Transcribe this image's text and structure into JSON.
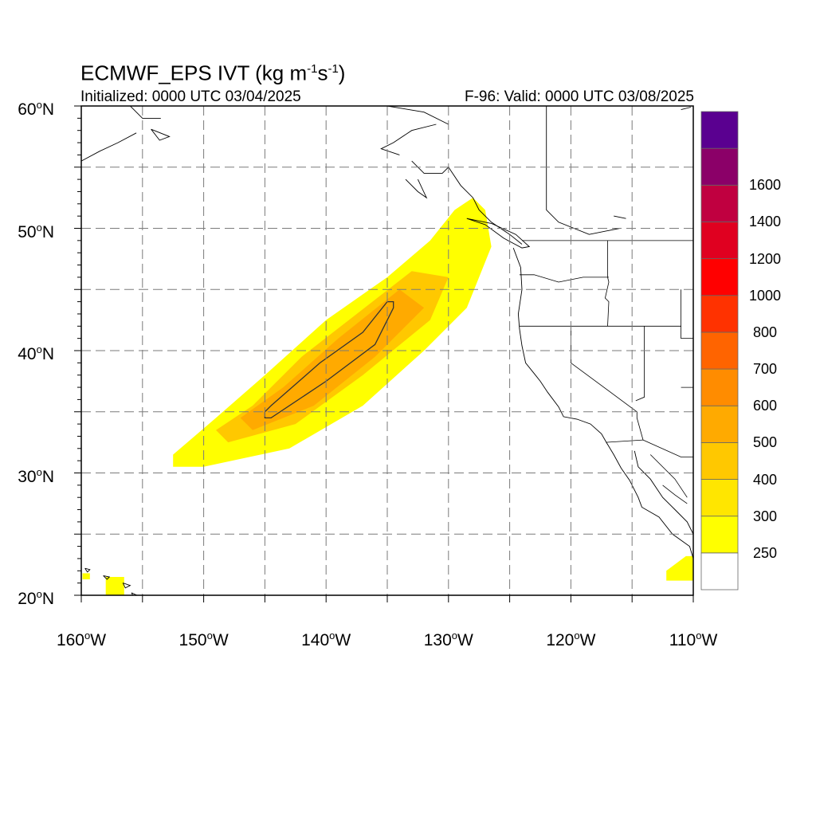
{
  "header": {
    "title_prefix": "ECMWF_EPS IVT (kg m",
    "title_sup1": "-1",
    "title_mid": "s",
    "title_sup2": "-1",
    "title_suffix": ")",
    "initialized": "Initialized: 0000 UTC 03/04/2025",
    "valid": "F-96: Valid: 0000 UTC 03/08/2025"
  },
  "axes": {
    "lat_labels": [
      {
        "value": 60,
        "text": "60",
        "hemi": "N"
      },
      {
        "value": 50,
        "text": "50",
        "hemi": "N"
      },
      {
        "value": 40,
        "text": "40",
        "hemi": "N"
      },
      {
        "value": 30,
        "text": "30",
        "hemi": "N"
      },
      {
        "value": 20,
        "text": "20",
        "hemi": "N"
      }
    ],
    "lon_labels": [
      {
        "value": -160,
        "text": "160",
        "hemi": "W"
      },
      {
        "value": -150,
        "text": "150",
        "hemi": "W"
      },
      {
        "value": -140,
        "text": "140",
        "hemi": "W"
      },
      {
        "value": -130,
        "text": "130",
        "hemi": "W"
      },
      {
        "value": -120,
        "text": "120",
        "hemi": "W"
      },
      {
        "value": -110,
        "text": "110",
        "hemi": "W"
      }
    ],
    "lat_range": [
      20,
      60
    ],
    "lon_range": [
      -160,
      -110
    ],
    "grid_lat": [
      25,
      30,
      35,
      40,
      45,
      50,
      55
    ],
    "grid_lon": [
      -155,
      -150,
      -145,
      -140,
      -135,
      -130,
      -125,
      -120,
      -115
    ],
    "grid_style": "dashed"
  },
  "colorbar": {
    "labels": [
      "1600",
      "1400",
      "1200",
      "1000",
      "800",
      "700",
      "600",
      "500",
      "400",
      "300",
      "250"
    ],
    "colors": [
      "#ffffff",
      "#ffff00",
      "#ffe600",
      "#ffc800",
      "#ffaa00",
      "#ff8c00",
      "#ff6400",
      "#ff3200",
      "#ff0000",
      "#e00020",
      "#c00040",
      "#8b0068",
      "#5a0090"
    ]
  },
  "ivt_field": {
    "plume_axis": [
      [
        -152,
        31
      ],
      [
        -146,
        34
      ],
      [
        -140,
        38.5
      ],
      [
        -134.5,
        43
      ],
      [
        -130,
        47
      ],
      [
        -128,
        52
      ]
    ],
    "outer_250": [
      [
        -152.5,
        30.5
      ],
      [
        -150,
        30.5
      ],
      [
        -143,
        32
      ],
      [
        -137,
        35.5
      ],
      [
        -132,
        40
      ],
      [
        -128.5,
        43.5
      ],
      [
        -126.5,
        48.5
      ],
      [
        -127,
        51.5
      ],
      [
        -128,
        52.5
      ],
      [
        -129.5,
        51.5
      ],
      [
        -131.5,
        49
      ],
      [
        -135,
        46
      ],
      [
        -140,
        42.5
      ],
      [
        -145,
        38
      ],
      [
        -149,
        34.5
      ],
      [
        -152.5,
        31.5
      ]
    ],
    "inner_400": [
      [
        -148,
        32.5
      ],
      [
        -142.5,
        34
      ],
      [
        -137,
        38
      ],
      [
        -131.5,
        42.5
      ],
      [
        -130,
        46
      ],
      [
        -133,
        46.5
      ],
      [
        -137.5,
        43
      ],
      [
        -142,
        39.5
      ],
      [
        -146,
        35.5
      ],
      [
        -149,
        33.5
      ]
    ],
    "inner_500": [
      [
        -146,
        33.5
      ],
      [
        -141,
        35.5
      ],
      [
        -136,
        39.5
      ],
      [
        -132,
        43.5
      ],
      [
        -134,
        45
      ],
      [
        -139,
        41
      ],
      [
        -143.5,
        37
      ],
      [
        -147,
        34.5
      ]
    ],
    "contour_600": [
      [
        -145,
        34.5
      ],
      [
        -144.5,
        34.5
      ],
      [
        -140,
        37.5
      ],
      [
        -136,
        40.5
      ],
      [
        -134.5,
        43.5
      ],
      [
        -134.5,
        44
      ],
      [
        -135,
        44
      ],
      [
        -137,
        41.5
      ],
      [
        -140.5,
        39
      ],
      [
        -144.5,
        35.5
      ],
      [
        -145,
        35
      ]
    ],
    "hawaii_patch": [
      [
        -158,
        20
      ],
      [
        -156.5,
        20
      ],
      [
        -156.5,
        21.5
      ],
      [
        -158,
        21.5
      ]
    ],
    "hawaii_patch2": [
      [
        -159.9,
        21.3
      ],
      [
        -159.3,
        21.3
      ],
      [
        -159.3,
        21.8
      ],
      [
        -159.9,
        21.8
      ]
    ],
    "mexico_patch": [
      [
        -112.2,
        21.2
      ],
      [
        -110,
        21.2
      ],
      [
        -110,
        23.2
      ],
      [
        -110.6,
        23.2
      ],
      [
        -112.2,
        22
      ]
    ]
  }
}
